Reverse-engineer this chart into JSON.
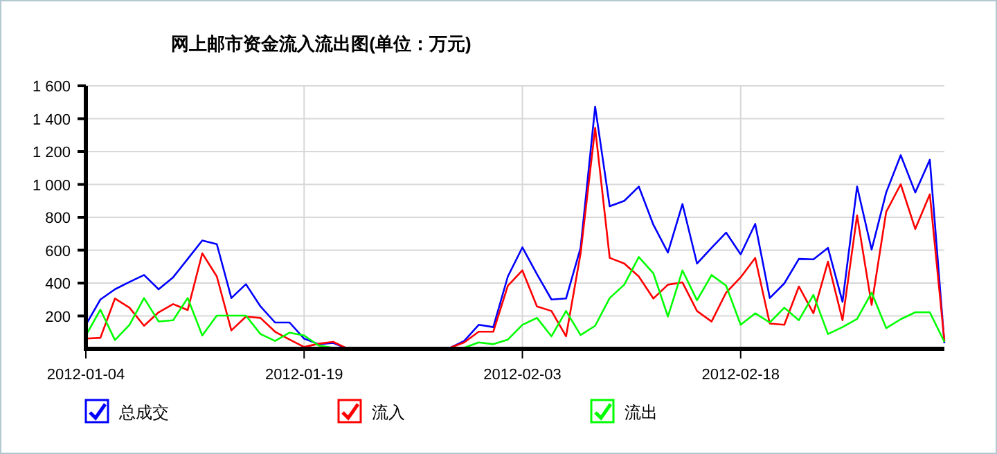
{
  "chart_data": {
    "type": "line",
    "title": "网上邮市资金流入流出图(单位：万元)",
    "x": [
      "2012-01-04",
      "2012-01-05",
      "2012-01-06",
      "2012-01-07",
      "2012-01-08",
      "2012-01-09",
      "2012-01-10",
      "2012-01-11",
      "2012-01-12",
      "2012-01-13",
      "2012-01-14",
      "2012-01-15",
      "2012-01-16",
      "2012-01-17",
      "2012-01-18",
      "2012-01-19",
      "2012-01-20",
      "2012-01-21",
      "2012-01-22",
      "2012-01-23",
      "2012-01-24",
      "2012-01-25",
      "2012-01-26",
      "2012-01-27",
      "2012-01-28",
      "2012-01-29",
      "2012-01-30",
      "2012-01-31",
      "2012-02-01",
      "2012-02-02",
      "2012-02-03",
      "2012-02-04",
      "2012-02-05",
      "2012-02-06",
      "2012-02-07",
      "2012-02-08",
      "2012-02-09",
      "2012-02-10",
      "2012-02-11",
      "2012-02-12",
      "2012-02-13",
      "2012-02-14",
      "2012-02-15",
      "2012-02-16",
      "2012-02-17",
      "2012-02-18",
      "2012-02-19",
      "2012-02-20",
      "2012-02-21",
      "2012-02-22",
      "2012-02-23",
      "2012-02-24",
      "2012-02-25",
      "2012-02-26",
      "2012-02-27",
      "2012-02-28",
      "2012-02-29",
      "2012-03-01",
      "2012-03-02",
      "2012-03-03"
    ],
    "series": [
      {
        "name": "总成交",
        "color": "#0000ff",
        "values": [
          146,
          300,
          362,
          407,
          449,
          362,
          435,
          547,
          659,
          637,
          309,
          393,
          258,
          160,
          160,
          62,
          28,
          36,
          0,
          0,
          0,
          0,
          0,
          0,
          0,
          5,
          48,
          146,
          132,
          440,
          617,
          454,
          300,
          306,
          614,
          1473,
          867,
          900,
          987,
          755,
          586,
          881,
          519,
          614,
          707,
          575,
          760,
          309,
          398,
          547,
          544,
          614,
          286,
          987,
          603,
          951,
          1178,
          951,
          1150,
          34
        ]
      },
      {
        "name": "流入",
        "color": "#ff0000",
        "values": [
          62,
          67,
          306,
          250,
          140,
          222,
          272,
          236,
          581,
          440,
          112,
          196,
          188,
          104,
          56,
          11,
          31,
          42,
          0,
          0,
          0,
          0,
          0,
          0,
          0,
          5,
          39,
          104,
          104,
          384,
          477,
          258,
          230,
          76,
          581,
          1344,
          553,
          519,
          440,
          306,
          390,
          404,
          230,
          166,
          342,
          435,
          553,
          154,
          146,
          379,
          216,
          530,
          174,
          811,
          267,
          833,
          1001,
          729,
          940,
          48
        ]
      },
      {
        "name": "流出",
        "color": "#00ff00",
        "values": [
          81,
          238,
          53,
          146,
          309,
          166,
          174,
          309,
          81,
          202,
          202,
          202,
          90,
          48,
          98,
          81,
          20,
          6,
          0,
          0,
          0,
          0,
          0,
          0,
          0,
          0,
          6,
          39,
          28,
          56,
          146,
          188,
          76,
          230,
          84,
          140,
          309,
          390,
          558,
          460,
          196,
          477,
          295,
          449,
          384,
          146,
          216,
          160,
          250,
          174,
          328,
          90,
          132,
          182,
          342,
          126,
          180,
          222,
          222,
          42
        ]
      }
    ],
    "xlim": [
      "2012-01-04",
      "2012-03-03"
    ],
    "xticks": [
      {
        "value": "2012-01-04",
        "label": "2012-01-04"
      },
      {
        "value": "2012-01-19",
        "label": "2012-01-19"
      },
      {
        "value": "2012-02-03",
        "label": "2012-02-03"
      },
      {
        "value": "2012-02-18",
        "label": "2012-02-18"
      }
    ],
    "ylim": [
      0,
      1600
    ],
    "yticks": [
      200,
      400,
      600,
      800,
      {
        "value": 1000,
        "label": "1 000"
      },
      {
        "value": 1200,
        "label": "1 200"
      },
      {
        "value": 1400,
        "label": "1 400"
      },
      {
        "value": 1600,
        "label": "1 600"
      }
    ],
    "grid": true,
    "legend": "bottom",
    "marker": "none",
    "line_style": "solid"
  }
}
